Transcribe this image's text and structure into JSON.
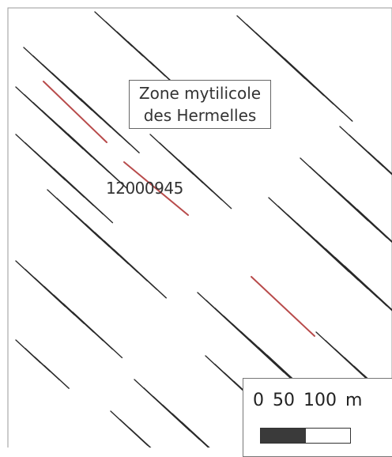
{
  "zone_label": "Zone mytilicole\ndes Hermelles",
  "parcel_id": "12000945",
  "scale": {
    "text": "0 50 100 m"
  },
  "colors": {
    "line": "#2a2a2a",
    "highlight": "#b84b4b",
    "frame": "#888888"
  }
}
